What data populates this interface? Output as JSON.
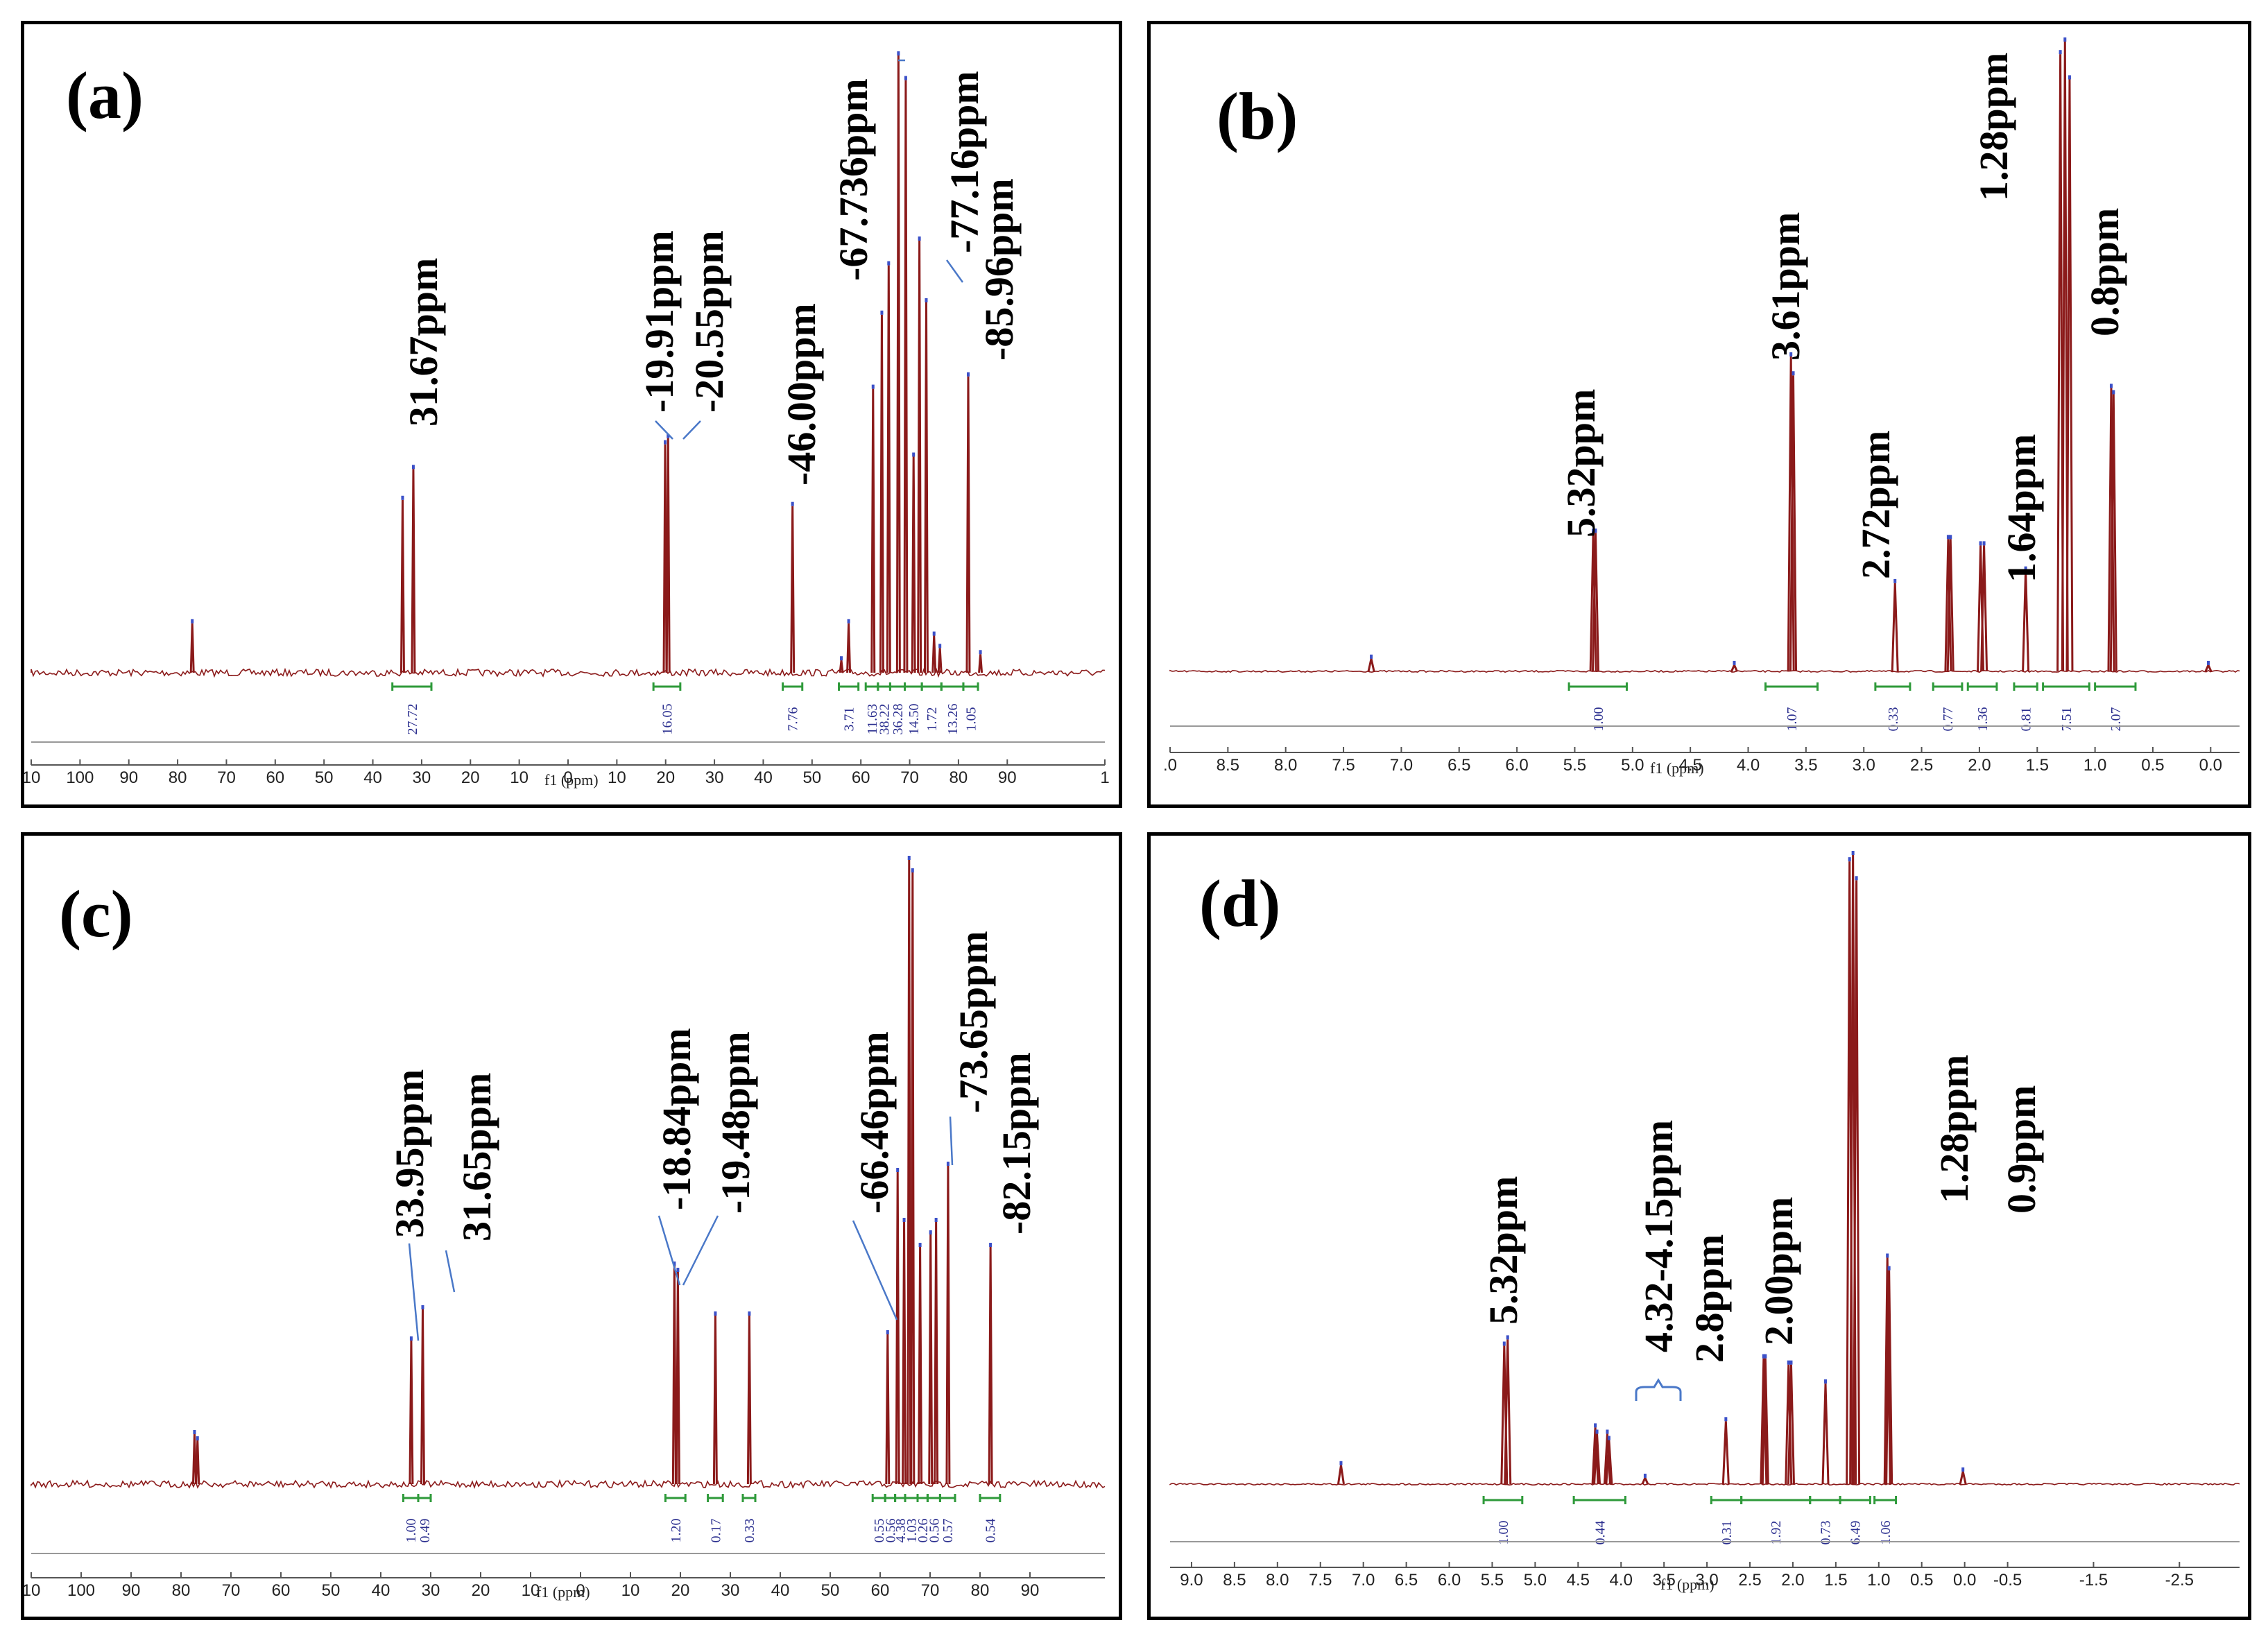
{
  "figure": {
    "colors": {
      "spectrum": "#8b1a1a",
      "integral": "#2e9a3a",
      "integral_text": "#2b2f8f",
      "callout": "#4a78c8",
      "frame": "#000000",
      "axis": "#555555"
    }
  },
  "chart_data": [
    {
      "id": "a",
      "label": "(a)",
      "type": "line",
      "xlabel": "f1 (ppm)",
      "xlim": [
        -110,
        110
      ],
      "ticks": [
        {
          "v": -110,
          "t": "10"
        },
        {
          "v": -100,
          "t": "100"
        },
        {
          "v": -90,
          "t": "90"
        },
        {
          "v": -80,
          "t": "80"
        },
        {
          "v": -70,
          "t": "70"
        },
        {
          "v": -60,
          "t": "60"
        },
        {
          "v": -50,
          "t": "50"
        },
        {
          "v": -40,
          "t": "40"
        },
        {
          "v": -30,
          "t": "30"
        },
        {
          "v": -20,
          "t": "20"
        },
        {
          "v": -10,
          "t": "10"
        },
        {
          "v": 0,
          "t": "0"
        },
        {
          "v": 10,
          "t": "10"
        },
        {
          "v": 20,
          "t": "20"
        },
        {
          "v": 30,
          "t": "30"
        },
        {
          "v": 40,
          "t": "40"
        },
        {
          "v": 50,
          "t": "50"
        },
        {
          "v": 60,
          "t": "60"
        },
        {
          "v": 70,
          "t": "70"
        },
        {
          "v": 80,
          "t": "80"
        },
        {
          "v": 90,
          "t": "90"
        },
        {
          "v": 110,
          "t": "1"
        }
      ],
      "peaks": [
        [
          -77,
          0.08
        ],
        [
          -33.9,
          0.28
        ],
        [
          -31.7,
          0.33
        ],
        [
          19.9,
          0.37
        ],
        [
          20.5,
          0.38
        ],
        [
          46,
          0.27
        ],
        [
          56,
          0.02
        ],
        [
          57.5,
          0.08
        ],
        [
          62.5,
          0.46
        ],
        [
          64.3,
          0.58
        ],
        [
          65.7,
          0.66
        ],
        [
          67.7,
          1.0
        ],
        [
          69.2,
          0.96
        ],
        [
          70.8,
          0.35
        ],
        [
          72,
          0.7
        ],
        [
          73.4,
          0.6
        ],
        [
          75,
          0.06
        ],
        [
          76.2,
          0.04
        ],
        [
          82,
          0.48
        ],
        [
          84.5,
          0.03
        ]
      ],
      "integrals": [
        {
          "from": -36,
          "to": -28,
          "t": "27.72"
        },
        {
          "from": 17.5,
          "to": 23,
          "t": "16.05"
        },
        {
          "from": 44,
          "to": 48,
          "t": "7.76"
        },
        {
          "from": 55.5,
          "to": 59.5,
          "t": "3.71"
        },
        {
          "from": 61,
          "to": 63.5,
          "t": "11.63"
        },
        {
          "from": 63.5,
          "to": 66,
          "t": "38.22"
        },
        {
          "from": 66,
          "to": 69,
          "t": "36.28"
        },
        {
          "from": 69,
          "to": 72.5,
          "t": "14.50"
        },
        {
          "from": 72.5,
          "to": 76.5,
          "t": "1.72"
        },
        {
          "from": 76.5,
          "to": 81,
          "t": "13.26"
        },
        {
          "from": 81,
          "to": 84,
          "t": "1.05"
        }
      ],
      "annotations": [
        "31.67ppm",
        "-19.91ppm",
        "-20.55ppm",
        "-46.00ppm",
        "-67.736ppm",
        "-77.16ppm",
        "-85.96ppm"
      ]
    },
    {
      "id": "b",
      "label": "(b)",
      "type": "line",
      "xlabel": "f1 (ppm)",
      "xlim": [
        9.0,
        -0.25
      ],
      "ticks": [
        {
          "v": 9.0,
          "t": ".0"
        },
        {
          "v": 8.5,
          "t": "8.5"
        },
        {
          "v": 8.0,
          "t": "8.0"
        },
        {
          "v": 7.5,
          "t": "7.5"
        },
        {
          "v": 7.0,
          "t": "7.0"
        },
        {
          "v": 6.5,
          "t": "6.5"
        },
        {
          "v": 6.0,
          "t": "6.0"
        },
        {
          "v": 5.5,
          "t": "5.5"
        },
        {
          "v": 5.0,
          "t": "5.0"
        },
        {
          "v": 4.5,
          "t": "4.5"
        },
        {
          "v": 4.0,
          "t": "4.0"
        },
        {
          "v": 3.5,
          "t": "3.5"
        },
        {
          "v": 3.0,
          "t": "3.0"
        },
        {
          "v": 2.5,
          "t": "2.5"
        },
        {
          "v": 2.0,
          "t": "2.0"
        },
        {
          "v": 1.5,
          "t": "1.5"
        },
        {
          "v": 1.0,
          "t": "1.0"
        },
        {
          "v": 0.5,
          "t": "0.5"
        },
        {
          "v": 0.0,
          "t": "0.0"
        }
      ],
      "peaks": [
        [
          7.26,
          0.02
        ],
        [
          5.34,
          0.22
        ],
        [
          5.32,
          0.22
        ],
        [
          4.12,
          0.01
        ],
        [
          3.63,
          0.5
        ],
        [
          3.61,
          0.47
        ],
        [
          2.73,
          0.14
        ],
        [
          2.27,
          0.21
        ],
        [
          2.25,
          0.21
        ],
        [
          1.99,
          0.2
        ],
        [
          1.96,
          0.2
        ],
        [
          1.6,
          0.16
        ],
        [
          1.3,
          0.98
        ],
        [
          1.26,
          1.0
        ],
        [
          1.22,
          0.94
        ],
        [
          0.86,
          0.45
        ],
        [
          0.84,
          0.44
        ],
        [
          0.02,
          0.01
        ]
      ],
      "integrals": [
        {
          "from": 5.55,
          "to": 5.05,
          "t": "1.00"
        },
        {
          "from": 3.85,
          "to": 3.4,
          "t": "1.07"
        },
        {
          "from": 2.9,
          "to": 2.6,
          "t": "0.33"
        },
        {
          "from": 2.4,
          "to": 2.15,
          "t": "0.77"
        },
        {
          "from": 2.1,
          "to": 1.85,
          "t": "1.36"
        },
        {
          "from": 1.7,
          "to": 1.5,
          "t": "0.81"
        },
        {
          "from": 1.45,
          "to": 1.05,
          "t": "7.51"
        },
        {
          "from": 1.0,
          "to": 0.65,
          "t": "2.07"
        }
      ],
      "annotations": [
        "5.32ppm",
        "3.61ppm",
        "2.72ppm",
        "1.64ppm",
        "1.28ppm",
        "0.8ppm"
      ]
    },
    {
      "id": "c",
      "label": "(c)",
      "type": "line",
      "xlabel": "f1 (ppm)",
      "xlim": [
        -110,
        105
      ],
      "ticks": [
        {
          "v": -110,
          "t": "10"
        },
        {
          "v": -100,
          "t": "100"
        },
        {
          "v": -90,
          "t": "90"
        },
        {
          "v": -80,
          "t": "80"
        },
        {
          "v": -70,
          "t": "70"
        },
        {
          "v": -60,
          "t": "60"
        },
        {
          "v": -50,
          "t": "50"
        },
        {
          "v": -40,
          "t": "40"
        },
        {
          "v": -30,
          "t": "30"
        },
        {
          "v": -20,
          "t": "20"
        },
        {
          "v": -10,
          "t": "10"
        },
        {
          "v": 0,
          "t": "0"
        },
        {
          "v": 10,
          "t": "10"
        },
        {
          "v": 20,
          "t": "20"
        },
        {
          "v": 30,
          "t": "30"
        },
        {
          "v": 40,
          "t": "40"
        },
        {
          "v": 50,
          "t": "50"
        },
        {
          "v": 60,
          "t": "60"
        },
        {
          "v": 70,
          "t": "70"
        },
        {
          "v": 80,
          "t": "80"
        },
        {
          "v": 90,
          "t": "90"
        }
      ],
      "peaks": [
        [
          -77.3,
          0.08
        ],
        [
          -76.7,
          0.07
        ],
        [
          -33.9,
          0.23
        ],
        [
          -31.6,
          0.28
        ],
        [
          18.8,
          0.35
        ],
        [
          19.5,
          0.34
        ],
        [
          27,
          0.27
        ],
        [
          33.8,
          0.27
        ],
        [
          61.5,
          0.24
        ],
        [
          63.5,
          0.5
        ],
        [
          64.8,
          0.42
        ],
        [
          65.8,
          1.0
        ],
        [
          66.5,
          0.98
        ],
        [
          68,
          0.38
        ],
        [
          70.1,
          0.4
        ],
        [
          71.2,
          0.42
        ],
        [
          73.6,
          0.51
        ],
        [
          82.1,
          0.38
        ]
      ],
      "integrals": [
        {
          "from": -35.5,
          "to": -32.5,
          "t": "1.00"
        },
        {
          "from": -32.5,
          "to": -30,
          "t": "0.49"
        },
        {
          "from": 17,
          "to": 21,
          "t": "1.20"
        },
        {
          "from": 25.5,
          "to": 28.5,
          "t": "0.17"
        },
        {
          "from": 32.5,
          "to": 35,
          "t": "0.33"
        },
        {
          "from": 58.5,
          "to": 61,
          "t": "0.55"
        },
        {
          "from": 61,
          "to": 63,
          "t": "0.56"
        },
        {
          "from": 63,
          "to": 65,
          "t": "4.38"
        },
        {
          "from": 65,
          "to": 67.5,
          "t": "1.03"
        },
        {
          "from": 67.5,
          "to": 69.5,
          "t": "0.26"
        },
        {
          "from": 69.5,
          "to": 72,
          "t": "0.56"
        },
        {
          "from": 72,
          "to": 75,
          "t": "0.57"
        },
        {
          "from": 80,
          "to": 84,
          "t": "0.54"
        }
      ],
      "annotations": [
        "33.95ppm",
        "31.65ppm",
        "-18.84ppm",
        "-19.48ppm",
        "-66.46ppm",
        "-73.65ppm",
        "-82.15ppm"
      ]
    },
    {
      "id": "d",
      "label": "(d)",
      "type": "line",
      "xlabel": "f1 (ppm)",
      "xlim": [
        9.25,
        -3.2
      ],
      "ticks": [
        {
          "v": 9.0,
          "t": "9.0"
        },
        {
          "v": 8.5,
          "t": "8.5"
        },
        {
          "v": 8.0,
          "t": "8.0"
        },
        {
          "v": 7.5,
          "t": "7.5"
        },
        {
          "v": 7.0,
          "t": "7.0"
        },
        {
          "v": 6.5,
          "t": "6.5"
        },
        {
          "v": 6.0,
          "t": "6.0"
        },
        {
          "v": 5.5,
          "t": "5.5"
        },
        {
          "v": 5.0,
          "t": "5.0"
        },
        {
          "v": 4.5,
          "t": "4.5"
        },
        {
          "v": 4.0,
          "t": "4.0"
        },
        {
          "v": 3.5,
          "t": "3.5"
        },
        {
          "v": 3.0,
          "t": "3.0"
        },
        {
          "v": 2.5,
          "t": "2.5"
        },
        {
          "v": 2.0,
          "t": "2.0"
        },
        {
          "v": 1.5,
          "t": "1.5"
        },
        {
          "v": 1.0,
          "t": "1.0"
        },
        {
          "v": 0.5,
          "t": "0.5"
        },
        {
          "v": 0.0,
          "t": "0.0"
        },
        {
          "v": -0.5,
          "t": "-0.5"
        },
        {
          "v": -1.5,
          "t": "-1.5"
        },
        {
          "v": -2.5,
          "t": "-2.5"
        }
      ],
      "peaks": [
        [
          7.26,
          0.03
        ],
        [
          5.36,
          0.22
        ],
        [
          5.32,
          0.23
        ],
        [
          4.3,
          0.09
        ],
        [
          4.28,
          0.08
        ],
        [
          4.16,
          0.08
        ],
        [
          4.14,
          0.07
        ],
        [
          3.72,
          0.01
        ],
        [
          2.78,
          0.1
        ],
        [
          2.34,
          0.2
        ],
        [
          2.32,
          0.2
        ],
        [
          2.05,
          0.19
        ],
        [
          2.02,
          0.19
        ],
        [
          1.62,
          0.16
        ],
        [
          1.34,
          0.99
        ],
        [
          1.3,
          1.0
        ],
        [
          1.26,
          0.96
        ],
        [
          0.9,
          0.36
        ],
        [
          0.88,
          0.34
        ],
        [
          0.02,
          0.02
        ]
      ],
      "integrals": [
        {
          "from": 5.6,
          "to": 5.15,
          "t": "1.00"
        },
        {
          "from": 4.55,
          "to": 3.95,
          "t": "0.44"
        },
        {
          "from": 2.95,
          "to": 2.6,
          "t": "0.31"
        },
        {
          "from": 2.6,
          "to": 1.8,
          "t": "1.92"
        },
        {
          "from": 1.8,
          "to": 1.45,
          "t": "0.73"
        },
        {
          "from": 1.45,
          "to": 1.1,
          "t": "6.49"
        },
        {
          "from": 1.05,
          "to": 0.8,
          "t": "1.06"
        }
      ],
      "annotations": [
        "5.32ppm",
        "4.32-4.15ppm",
        "2.8ppm",
        "2.00ppm",
        "1.28ppm",
        "0.9ppm"
      ]
    }
  ]
}
